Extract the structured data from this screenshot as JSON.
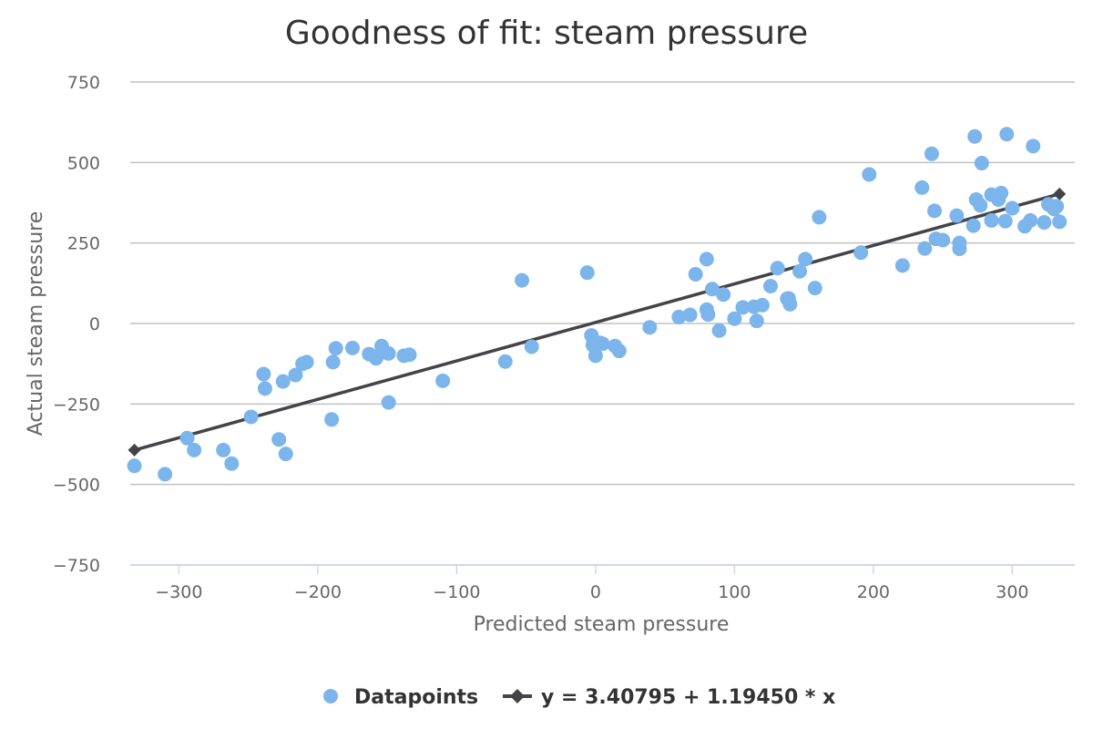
{
  "chart_data": {
    "type": "scatter",
    "title": "Goodness of fit: steam pressure",
    "xlabel": "Predicted steam pressure",
    "ylabel": "Actual steam pressure",
    "xlim": [
      -335,
      345
    ],
    "ylim": [
      -750,
      750
    ],
    "x_ticks": [
      -300,
      -200,
      -100,
      0,
      100,
      200,
      300
    ],
    "y_ticks": [
      -750,
      -500,
      -250,
      0,
      250,
      500,
      750
    ],
    "x_tick_labels": [
      "−300",
      "−200",
      "−100",
      "0",
      "100",
      "200",
      "300"
    ],
    "y_tick_labels": [
      "−750",
      "−500",
      "−250",
      "0",
      "250",
      "500",
      "750"
    ],
    "grid": "horizontal",
    "legend_position": "bottom-center",
    "colors": {
      "points": "#7cb5ec",
      "line": "#434348",
      "grid": "#c0c0c0",
      "axis": "#ccd6eb"
    },
    "series": [
      {
        "name": "Datapoints",
        "type": "scatter",
        "points": [
          [
            -332,
            -442
          ],
          [
            -310,
            -468
          ],
          [
            -294,
            -356
          ],
          [
            -289,
            -393
          ],
          [
            -268,
            -393
          ],
          [
            -262,
            -435
          ],
          [
            -248,
            -290
          ],
          [
            -239,
            -157
          ],
          [
            -238,
            -202
          ],
          [
            -228,
            -360
          ],
          [
            -225,
            -180
          ],
          [
            -223,
            -405
          ],
          [
            -216,
            -160
          ],
          [
            -211,
            -125
          ],
          [
            -208,
            -120
          ],
          [
            -190,
            -298
          ],
          [
            -189,
            -120
          ],
          [
            -187,
            -77
          ],
          [
            -175,
            -76
          ],
          [
            -163,
            -95
          ],
          [
            -158,
            -108
          ],
          [
            -154,
            -70
          ],
          [
            -154,
            -90
          ],
          [
            -149,
            -245
          ],
          [
            -149,
            -93
          ],
          [
            -138,
            -100
          ],
          [
            -134,
            -97
          ],
          [
            -110,
            -178
          ],
          [
            -65,
            -118
          ],
          [
            -53,
            134
          ],
          [
            -46,
            -72
          ],
          [
            -6,
            158
          ],
          [
            -3,
            -37
          ],
          [
            -2,
            -67
          ],
          [
            0,
            -100
          ],
          [
            3,
            -60
          ],
          [
            5,
            -63
          ],
          [
            14,
            -70
          ],
          [
            17,
            -85
          ],
          [
            39,
            -12
          ],
          [
            60,
            20
          ],
          [
            68,
            27
          ],
          [
            72,
            153
          ],
          [
            80,
            43
          ],
          [
            80,
            200
          ],
          [
            81,
            28
          ],
          [
            84,
            107
          ],
          [
            89,
            -22
          ],
          [
            92,
            90
          ],
          [
            100,
            15
          ],
          [
            106,
            50
          ],
          [
            114,
            52
          ],
          [
            116,
            8
          ],
          [
            120,
            57
          ],
          [
            126,
            116
          ],
          [
            131,
            172
          ],
          [
            138,
            77
          ],
          [
            139,
            78
          ],
          [
            140,
            60
          ],
          [
            147,
            162
          ],
          [
            151,
            200
          ],
          [
            158,
            110
          ],
          [
            161,
            330
          ],
          [
            191,
            220
          ],
          [
            197,
            463
          ],
          [
            221,
            180
          ],
          [
            235,
            422
          ],
          [
            237,
            233
          ],
          [
            242,
            527
          ],
          [
            244,
            350
          ],
          [
            245,
            263
          ],
          [
            250,
            259
          ],
          [
            260,
            335
          ],
          [
            262,
            250
          ],
          [
            262,
            232
          ],
          [
            272,
            304
          ],
          [
            273,
            581
          ],
          [
            274,
            385
          ],
          [
            277,
            367
          ],
          [
            278,
            498
          ],
          [
            285,
            320
          ],
          [
            285,
            400
          ],
          [
            290,
            385
          ],
          [
            290,
            398
          ],
          [
            292,
            405
          ],
          [
            295,
            318
          ],
          [
            296,
            588
          ],
          [
            300,
            358
          ],
          [
            309,
            302
          ],
          [
            313,
            320
          ],
          [
            315,
            551
          ],
          [
            323,
            314
          ],
          [
            326,
            370
          ],
          [
            330,
            356
          ],
          [
            332,
            364
          ],
          [
            334,
            316
          ]
        ]
      },
      {
        "name": "y = 3.40795 + 1.19450 * x",
        "type": "line",
        "points": [
          [
            -332,
            -393.2
          ],
          [
            334,
            402.4
          ]
        ]
      }
    ]
  }
}
